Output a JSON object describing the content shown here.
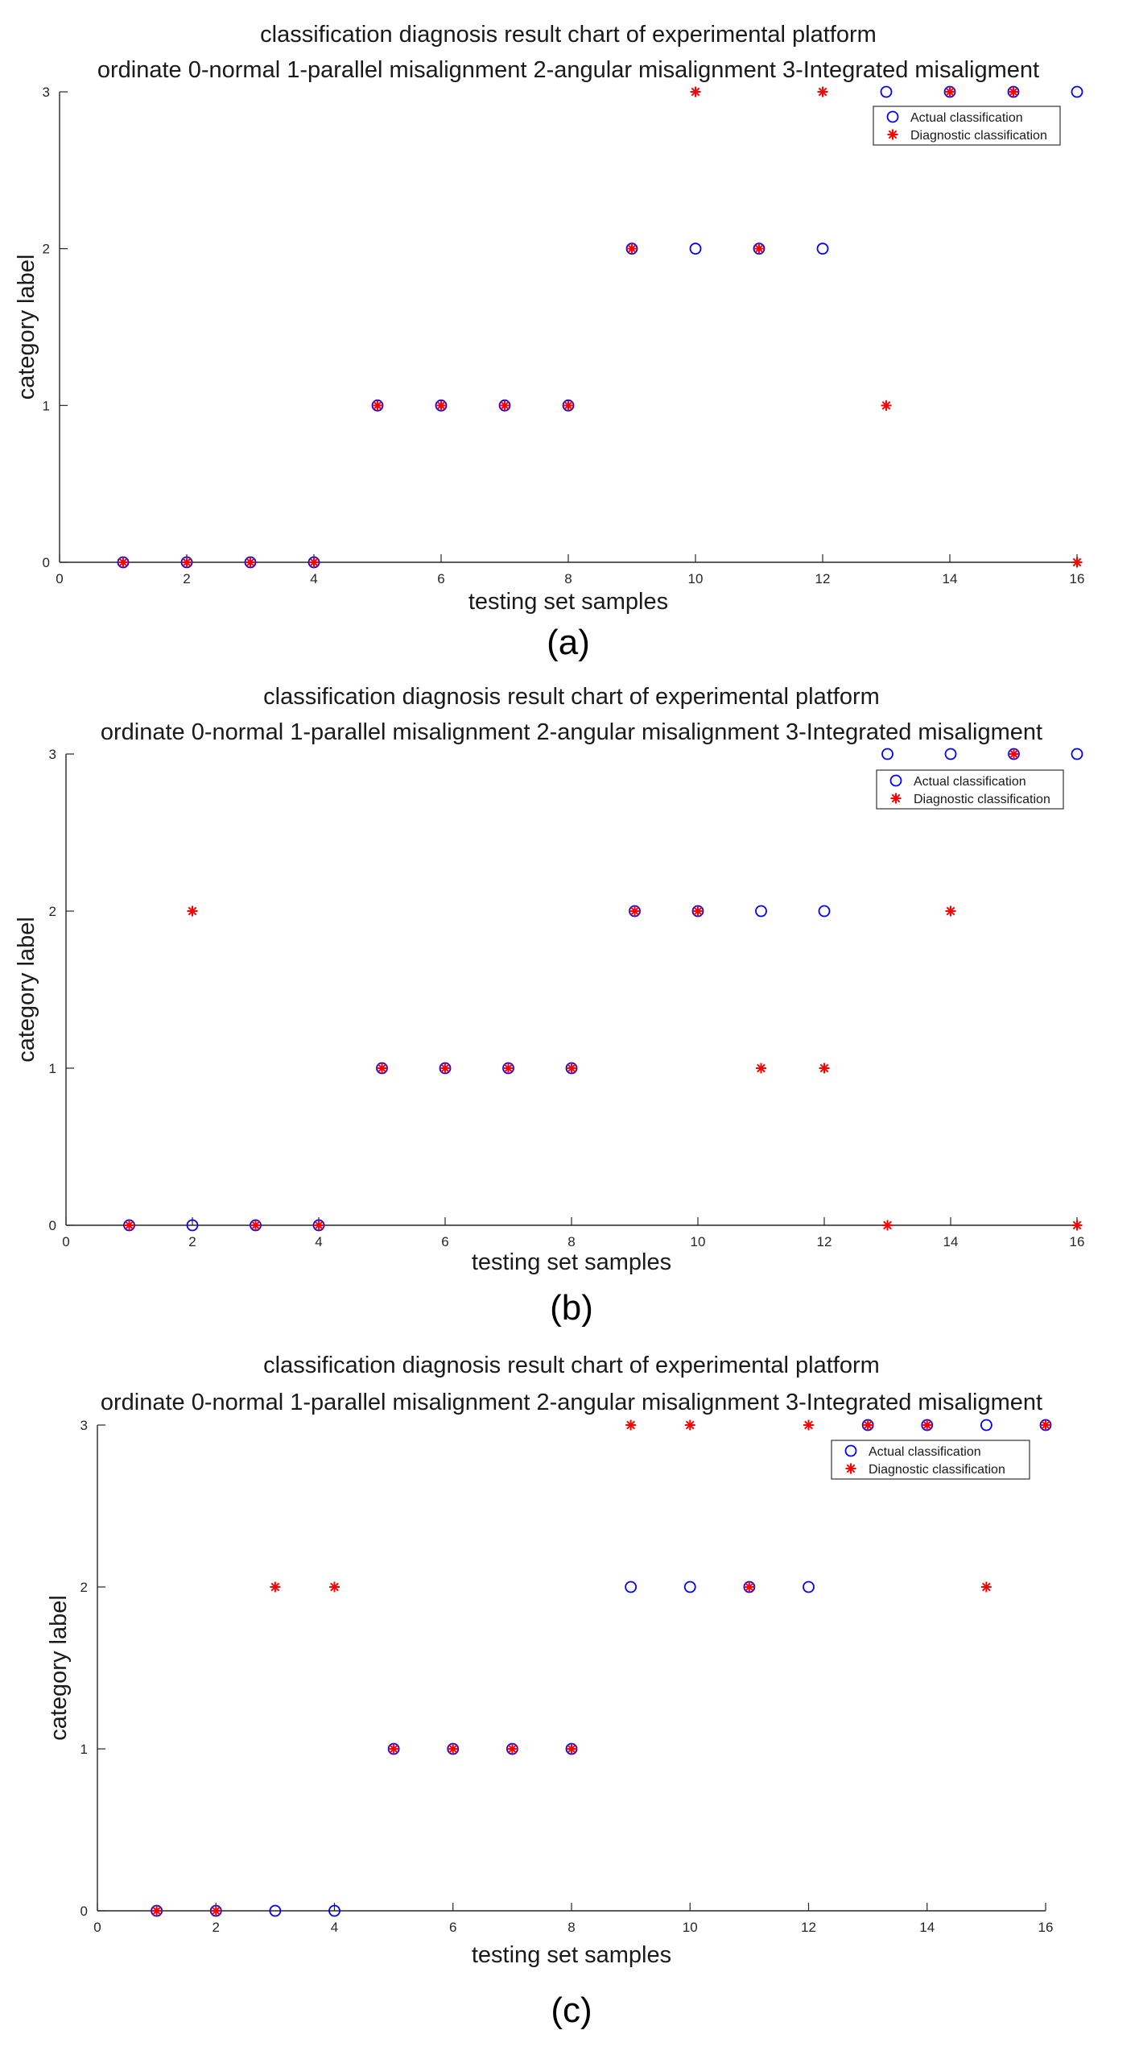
{
  "chart_data": [
    {
      "type": "scatter",
      "panel_label": "(a)",
      "title": "classification diagnosis result chart of experimental platform",
      "subtitle": "ordinate 0-normal 1-parallel misalignment 2-angular misalignment 3-Integrated misaligment",
      "xlabel": "testing set samples",
      "ylabel": "category label",
      "xlim": [
        0,
        16
      ],
      "ylim": [
        0,
        3
      ],
      "xticks": [
        "0",
        "2",
        "4",
        "6",
        "8",
        "10",
        "12",
        "14",
        "16"
      ],
      "yticks": [
        "0",
        "1",
        "2",
        "3"
      ],
      "legend_position": "top-right",
      "series": [
        {
          "name": "Actual classification",
          "marker": "circle",
          "color": "#0000ff",
          "x": [
            1,
            2,
            3,
            4,
            5,
            6,
            7,
            8,
            9,
            10,
            11,
            12,
            13,
            14,
            15,
            16
          ],
          "y": [
            0,
            0,
            0,
            0,
            1,
            1,
            1,
            1,
            2,
            2,
            2,
            2,
            3,
            3,
            3,
            3
          ]
        },
        {
          "name": "Diagnostic classification",
          "marker": "asterisk",
          "color": "#ff0000",
          "x": [
            1,
            2,
            3,
            4,
            5,
            6,
            7,
            8,
            9,
            10,
            11,
            12,
            13,
            14,
            15,
            16
          ],
          "y": [
            0,
            0,
            0,
            0,
            1,
            1,
            1,
            1,
            2,
            3,
            2,
            3,
            1,
            3,
            3,
            0
          ]
        }
      ]
    },
    {
      "type": "scatter",
      "panel_label": "(b)",
      "title": "classification diagnosis result chart of experimental platform",
      "subtitle": "ordinate 0-normal 1-parallel misalignment 2-angular misalignment 3-Integrated misaligment",
      "xlabel": "testing set samples",
      "ylabel": "category label",
      "xlim": [
        0,
        16
      ],
      "ylim": [
        0,
        3
      ],
      "xticks": [
        "0",
        "2",
        "4",
        "6",
        "8",
        "10",
        "12",
        "14",
        "16"
      ],
      "yticks": [
        "0",
        "1",
        "2",
        "3"
      ],
      "legend_position": "top-right",
      "series": [
        {
          "name": "Actual classification",
          "marker": "circle",
          "color": "#0000ff",
          "x": [
            1,
            2,
            3,
            4,
            5,
            6,
            7,
            8,
            9,
            10,
            11,
            12,
            13,
            14,
            15,
            16
          ],
          "y": [
            0,
            0,
            0,
            0,
            1,
            1,
            1,
            1,
            2,
            2,
            2,
            2,
            3,
            3,
            3,
            3
          ]
        },
        {
          "name": "Diagnostic classification",
          "marker": "asterisk",
          "color": "#ff0000",
          "x": [
            1,
            2,
            3,
            4,
            5,
            6,
            7,
            8,
            9,
            10,
            11,
            12,
            13,
            14,
            15,
            16
          ],
          "y": [
            0,
            2,
            0,
            0,
            1,
            1,
            1,
            1,
            2,
            2,
            1,
            1,
            0,
            2,
            3,
            0
          ]
        }
      ]
    },
    {
      "type": "scatter",
      "panel_label": "(c)",
      "title": "classification diagnosis result chart of experimental platform",
      "subtitle": "ordinate 0-normal 1-parallel misalignment 2-angular misalignment 3-Integrated misaligment",
      "xlabel": "testing set samples",
      "ylabel": "category label",
      "xlim": [
        0,
        16
      ],
      "ylim": [
        0,
        3
      ],
      "xticks": [
        "0",
        "2",
        "4",
        "6",
        "8",
        "10",
        "12",
        "14",
        "16"
      ],
      "yticks": [
        "0",
        "1",
        "2",
        "3"
      ],
      "legend_position": "top-right",
      "series": [
        {
          "name": "Actual classification",
          "marker": "circle",
          "color": "#0000ff",
          "x": [
            1,
            2,
            3,
            4,
            5,
            6,
            7,
            8,
            9,
            10,
            11,
            12,
            13,
            14,
            15,
            16
          ],
          "y": [
            0,
            0,
            0,
            0,
            1,
            1,
            1,
            1,
            2,
            2,
            2,
            2,
            3,
            3,
            3,
            3
          ]
        },
        {
          "name": "Diagnostic classification",
          "marker": "asterisk",
          "color": "#ff0000",
          "x": [
            1,
            2,
            3,
            4,
            5,
            6,
            7,
            8,
            9,
            10,
            11,
            12,
            13,
            14,
            15,
            16
          ],
          "y": [
            0,
            0,
            2,
            2,
            1,
            1,
            1,
            1,
            3,
            3,
            2,
            3,
            3,
            3,
            2,
            3
          ]
        }
      ]
    }
  ]
}
